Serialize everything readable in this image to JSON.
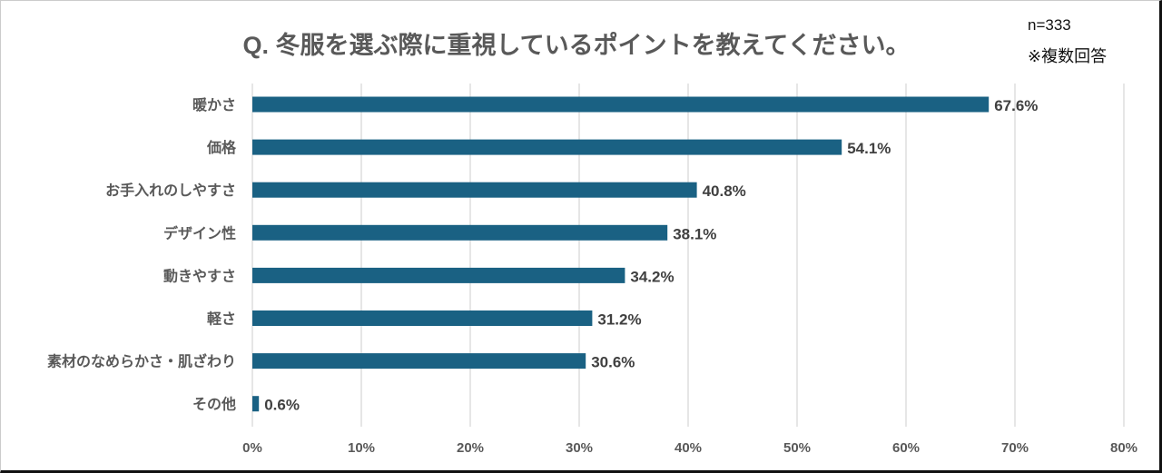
{
  "chart_data": {
    "type": "bar",
    "orientation": "horizontal",
    "title": "Q. 冬服を選ぶ際に重視しているポイントを教えてください。",
    "sample_size": "n=333",
    "note": "※複数回答",
    "categories": [
      "暖かさ",
      "価格",
      "お手入れのしやすさ",
      "デザイン性",
      "動きやすさ",
      "軽さ",
      "素材のなめらかさ・肌ざわり",
      "その他"
    ],
    "values": [
      67.6,
      54.1,
      40.8,
      38.1,
      34.2,
      31.2,
      30.6,
      0.6
    ],
    "value_labels": [
      "67.6%",
      "54.1%",
      "40.8%",
      "38.1%",
      "34.2%",
      "31.2%",
      "30.6%",
      "0.6%"
    ],
    "xlim": [
      0,
      80
    ],
    "xticks": [
      "0%",
      "10%",
      "20%",
      "30%",
      "40%",
      "50%",
      "60%",
      "70%",
      "80%"
    ],
    "grid": true,
    "bar_color": "#1a6183",
    "xlabel": "",
    "ylabel": ""
  }
}
